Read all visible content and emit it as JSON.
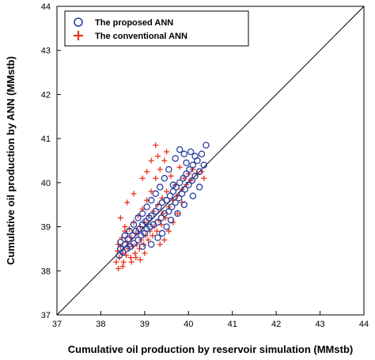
{
  "chart_data": {
    "type": "scatter",
    "title": "",
    "xlabel": "Cumulative oil production by reservoir simulation (MMstb)",
    "ylabel": "Cumulative oil production by ANN (MMstb)",
    "xlim": [
      37,
      44
    ],
    "ylim": [
      37,
      44
    ],
    "xticks": [
      "37",
      "38",
      "39",
      "40",
      "41",
      "42",
      "43",
      "44"
    ],
    "yticks": [
      "37",
      "38",
      "39",
      "40",
      "41",
      "42",
      "43",
      "44"
    ],
    "grid": false,
    "legend_position": "top-left",
    "reference_line": {
      "from": [
        37,
        37
      ],
      "to": [
        44,
        44
      ]
    },
    "series": [
      {
        "name": "The proposed ANN",
        "marker": "circle",
        "color": "#2b3fa0",
        "points": [
          [
            38.42,
            38.35
          ],
          [
            38.45,
            38.5
          ],
          [
            38.5,
            38.42
          ],
          [
            38.55,
            38.6
          ],
          [
            38.6,
            38.5
          ],
          [
            38.62,
            38.72
          ],
          [
            38.68,
            38.55
          ],
          [
            38.72,
            38.8
          ],
          [
            38.75,
            38.62
          ],
          [
            38.8,
            38.9
          ],
          [
            38.85,
            38.7
          ],
          [
            38.88,
            38.95
          ],
          [
            38.92,
            38.8
          ],
          [
            38.95,
            39.05
          ],
          [
            39.0,
            38.85
          ],
          [
            39.02,
            39.12
          ],
          [
            39.05,
            38.95
          ],
          [
            39.1,
            39.2
          ],
          [
            39.12,
            39.0
          ],
          [
            39.15,
            39.25
          ],
          [
            39.2,
            39.05
          ],
          [
            39.25,
            39.35
          ],
          [
            39.3,
            39.1
          ],
          [
            39.32,
            39.45
          ],
          [
            39.38,
            39.2
          ],
          [
            39.4,
            39.55
          ],
          [
            39.45,
            39.3
          ],
          [
            39.5,
            39.6
          ],
          [
            39.55,
            39.35
          ],
          [
            39.58,
            39.7
          ],
          [
            39.62,
            39.45
          ],
          [
            39.65,
            39.8
          ],
          [
            39.7,
            39.55
          ],
          [
            39.72,
            39.9
          ],
          [
            39.78,
            39.65
          ],
          [
            39.8,
            40.0
          ],
          [
            39.85,
            39.75
          ],
          [
            39.88,
            40.1
          ],
          [
            39.92,
            39.85
          ],
          [
            39.95,
            40.2
          ],
          [
            40.0,
            39.95
          ],
          [
            40.02,
            40.3
          ],
          [
            40.08,
            40.05
          ],
          [
            40.1,
            40.4
          ],
          [
            40.15,
            40.15
          ],
          [
            40.2,
            40.5
          ],
          [
            40.25,
            40.25
          ],
          [
            40.3,
            40.65
          ],
          [
            40.35,
            40.4
          ],
          [
            40.4,
            40.85
          ],
          [
            39.8,
            40.75
          ],
          [
            39.9,
            40.65
          ],
          [
            40.05,
            40.7
          ],
          [
            39.7,
            40.55
          ],
          [
            39.55,
            40.3
          ],
          [
            39.45,
            40.1
          ],
          [
            39.35,
            39.9
          ],
          [
            39.25,
            39.75
          ],
          [
            39.15,
            39.6
          ],
          [
            39.05,
            39.45
          ],
          [
            38.95,
            39.3
          ],
          [
            38.85,
            39.2
          ],
          [
            38.75,
            39.05
          ],
          [
            38.65,
            38.9
          ],
          [
            38.55,
            38.8
          ],
          [
            38.45,
            38.65
          ],
          [
            39.6,
            39.15
          ],
          [
            39.75,
            39.3
          ],
          [
            39.9,
            39.5
          ],
          [
            40.1,
            39.7
          ],
          [
            40.25,
            39.9
          ],
          [
            39.5,
            39.0
          ],
          [
            39.4,
            38.85
          ],
          [
            39.3,
            38.75
          ],
          [
            39.15,
            38.6
          ],
          [
            38.95,
            38.55
          ],
          [
            39.65,
            39.95
          ],
          [
            39.95,
            40.45
          ],
          [
            40.15,
            40.6
          ]
        ]
      },
      {
        "name": "The conventional ANN",
        "marker": "plus",
        "color": "#e8341c",
        "points": [
          [
            38.35,
            38.2
          ],
          [
            38.38,
            38.45
          ],
          [
            38.4,
            38.6
          ],
          [
            38.42,
            38.3
          ],
          [
            38.45,
            38.55
          ],
          [
            38.48,
            38.75
          ],
          [
            38.5,
            38.4
          ],
          [
            38.52,
            38.2
          ],
          [
            38.55,
            38.9
          ],
          [
            38.58,
            38.35
          ],
          [
            38.6,
            38.65
          ],
          [
            38.62,
            38.5
          ],
          [
            38.65,
            38.95
          ],
          [
            38.68,
            38.3
          ],
          [
            38.7,
            38.75
          ],
          [
            38.72,
            38.55
          ],
          [
            38.75,
            39.1
          ],
          [
            38.78,
            38.4
          ],
          [
            38.8,
            38.85
          ],
          [
            38.82,
            38.6
          ],
          [
            38.85,
            39.25
          ],
          [
            38.88,
            38.5
          ],
          [
            38.9,
            39.0
          ],
          [
            38.92,
            38.7
          ],
          [
            38.95,
            39.4
          ],
          [
            38.98,
            38.6
          ],
          [
            39.0,
            39.1
          ],
          [
            39.02,
            38.8
          ],
          [
            39.05,
            39.6
          ],
          [
            39.08,
            38.7
          ],
          [
            39.1,
            39.25
          ],
          [
            39.12,
            38.9
          ],
          [
            39.15,
            39.8
          ],
          [
            39.18,
            38.8
          ],
          [
            39.2,
            39.35
          ],
          [
            39.22,
            39.0
          ],
          [
            39.25,
            40.1
          ],
          [
            39.28,
            38.9
          ],
          [
            39.3,
            39.5
          ],
          [
            39.32,
            39.15
          ],
          [
            39.35,
            40.3
          ],
          [
            39.38,
            39.05
          ],
          [
            39.4,
            39.65
          ],
          [
            39.42,
            39.3
          ],
          [
            39.45,
            40.5
          ],
          [
            39.48,
            39.2
          ],
          [
            39.5,
            39.8
          ],
          [
            39.55,
            39.45
          ],
          [
            39.6,
            40.15
          ],
          [
            39.65,
            39.6
          ],
          [
            39.7,
            39.95
          ],
          [
            39.75,
            39.7
          ],
          [
            39.8,
            40.35
          ],
          [
            39.85,
            39.85
          ],
          [
            39.9,
            40.1
          ],
          [
            39.95,
            39.95
          ],
          [
            40.0,
            40.2
          ],
          [
            40.05,
            40.05
          ],
          [
            40.1,
            40.3
          ],
          [
            40.2,
            40.2
          ],
          [
            40.3,
            40.25
          ],
          [
            40.35,
            40.1
          ],
          [
            38.95,
            40.1
          ],
          [
            39.05,
            40.25
          ],
          [
            39.25,
            40.85
          ],
          [
            39.15,
            40.5
          ],
          [
            38.6,
            39.55
          ],
          [
            38.75,
            39.75
          ],
          [
            38.45,
            39.2
          ],
          [
            38.55,
            39.0
          ],
          [
            39.3,
            40.6
          ],
          [
            39.5,
            40.7
          ],
          [
            39.45,
            38.7
          ],
          [
            39.55,
            38.9
          ],
          [
            39.65,
            39.1
          ],
          [
            39.35,
            38.6
          ],
          [
            39.75,
            39.3
          ],
          [
            39.85,
            39.55
          ],
          [
            38.9,
            38.25
          ],
          [
            39.0,
            38.4
          ],
          [
            38.4,
            38.05
          ],
          [
            38.5,
            38.1
          ],
          [
            38.7,
            38.2
          ],
          [
            38.8,
            38.3
          ]
        ]
      }
    ]
  }
}
